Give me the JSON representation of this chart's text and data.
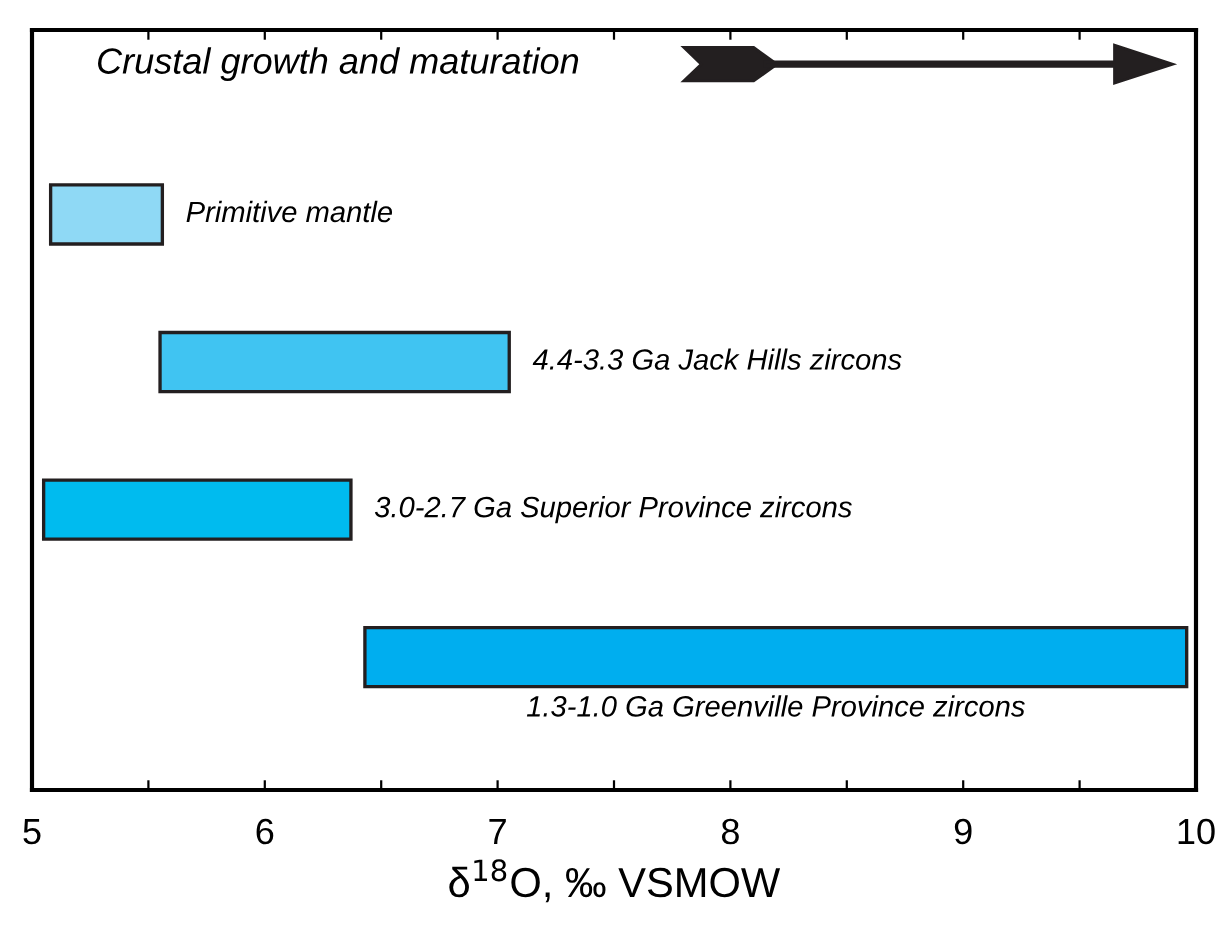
{
  "chart_data": {
    "type": "bar",
    "orientation": "horizontal",
    "categories": [
      "Primitive mantle",
      "4.4-3.3 Ga Jack Hills zircons",
      "3.0-2.7 Ga Superior Province zircons",
      "1.3-1.0 Ga Greenville Province zircons"
    ],
    "base": [
      5.08,
      5.55,
      5.05,
      6.43
    ],
    "values": [
      0.48,
      1.5,
      1.32,
      3.53
    ],
    "colors": [
      "#8fd9f5",
      "#40c4f2",
      "#00bbef",
      "#00aeef"
    ],
    "xlim": [
      5,
      10
    ],
    "xticks": [
      5,
      {
        "value": 5.5,
        "label": null
      },
      6,
      {
        "value": 6.5,
        "label": null
      },
      7,
      {
        "value": 7.5,
        "label": null
      },
      8,
      {
        "value": 8.5,
        "label": null
      },
      9,
      {
        "value": 9.5,
        "label": null
      },
      10
    ],
    "xlabel": "δ$^{18}$O, ‰ VSMOW",
    "annotations": [
      "Crustal growth and maturation"
    ],
    "tick_labels": "x",
    "grid": false,
    "legend": false
  }
}
